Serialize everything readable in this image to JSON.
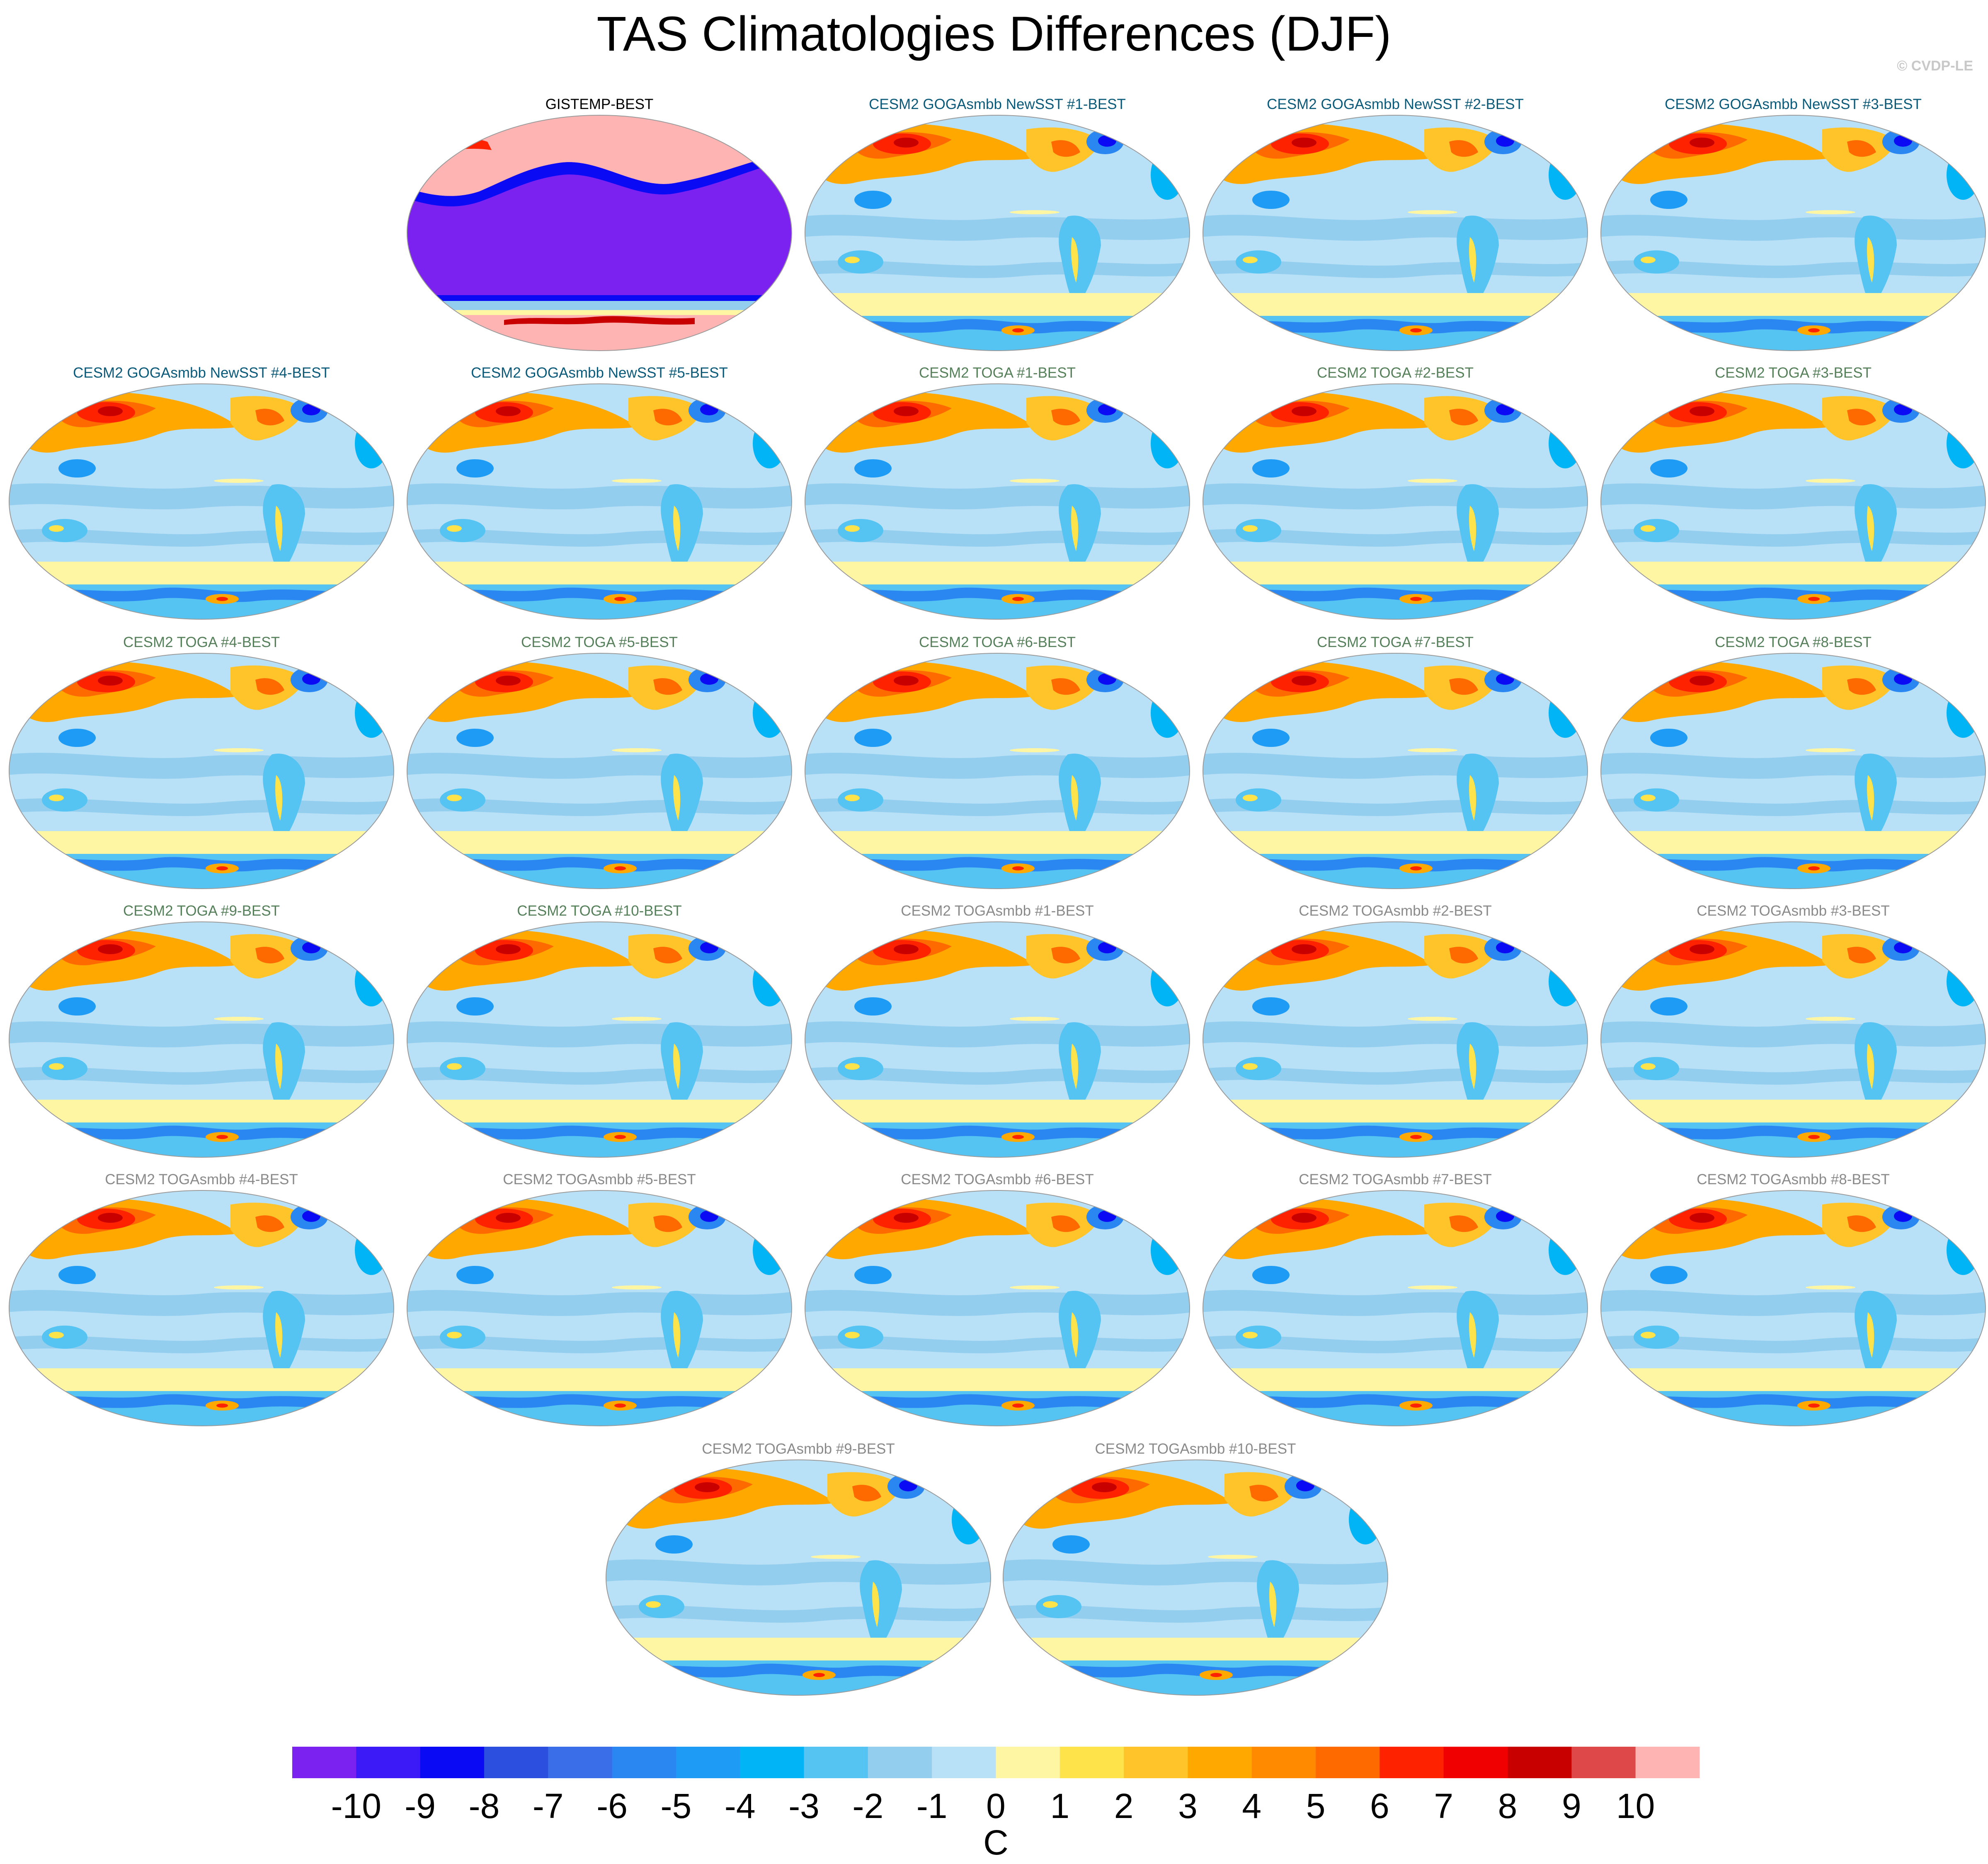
{
  "title": "TAS Climatologies Differences (DJF)",
  "copyright": "© CVDP-LE",
  "colors": {
    "title_obs": "#000000",
    "title_goga": "#0b5a7a",
    "title_toga": "#55805a",
    "title_togasmbb": "#8a8a8a"
  },
  "chart_data": {
    "type": "heatmap",
    "projection": "robinson (world maps, pacific-centred)",
    "variable": "TAS",
    "season": "DJF",
    "panels": [
      {
        "title": "GISTEMP-BEST",
        "group": "obs"
      },
      {
        "title": "CESM2 GOGAsmbb NewSST #1-BEST",
        "group": "goga"
      },
      {
        "title": "CESM2 GOGAsmbb NewSST #2-BEST",
        "group": "goga"
      },
      {
        "title": "CESM2 GOGAsmbb NewSST #3-BEST",
        "group": "goga"
      },
      {
        "title": "CESM2 GOGAsmbb NewSST #4-BEST",
        "group": "goga"
      },
      {
        "title": "CESM2 GOGAsmbb NewSST #5-BEST",
        "group": "goga"
      },
      {
        "title": "CESM2 TOGA #1-BEST",
        "group": "toga"
      },
      {
        "title": "CESM2 TOGA #2-BEST",
        "group": "toga"
      },
      {
        "title": "CESM2 TOGA #3-BEST",
        "group": "toga"
      },
      {
        "title": "CESM2 TOGA #4-BEST",
        "group": "toga"
      },
      {
        "title": "CESM2 TOGA #5-BEST",
        "group": "toga"
      },
      {
        "title": "CESM2 TOGA #6-BEST",
        "group": "toga"
      },
      {
        "title": "CESM2 TOGA #7-BEST",
        "group": "toga"
      },
      {
        "title": "CESM2 TOGA #8-BEST",
        "group": "toga"
      },
      {
        "title": "CESM2 TOGA #9-BEST",
        "group": "toga"
      },
      {
        "title": "CESM2 TOGA #10-BEST",
        "group": "toga"
      },
      {
        "title": "CESM2 TOGAsmbb #1-BEST",
        "group": "togasmbb"
      },
      {
        "title": "CESM2 TOGAsmbb #2-BEST",
        "group": "togasmbb"
      },
      {
        "title": "CESM2 TOGAsmbb #3-BEST",
        "group": "togasmbb"
      },
      {
        "title": "CESM2 TOGAsmbb #4-BEST",
        "group": "togasmbb"
      },
      {
        "title": "CESM2 TOGAsmbb #5-BEST",
        "group": "togasmbb"
      },
      {
        "title": "CESM2 TOGAsmbb #6-BEST",
        "group": "togasmbb"
      },
      {
        "title": "CESM2 TOGAsmbb #7-BEST",
        "group": "togasmbb"
      },
      {
        "title": "CESM2 TOGAsmbb #8-BEST",
        "group": "togasmbb"
      },
      {
        "title": "CESM2 TOGAsmbb #9-BEST",
        "group": "togasmbb"
      },
      {
        "title": "CESM2 TOGAsmbb #10-BEST",
        "group": "togasmbb"
      }
    ],
    "colorbar": {
      "label": "C",
      "ticks": [
        -10,
        -9,
        -8,
        -7,
        -6,
        -5,
        -4,
        -3,
        -2,
        -1,
        0,
        1,
        2,
        3,
        4,
        5,
        6,
        7,
        8,
        9,
        10
      ],
      "colors": [
        "#7c22f0",
        "#3c1af8",
        "#0a0af5",
        "#2c4fe0",
        "#3a6ee8",
        "#2a86f0",
        "#1e9cf5",
        "#00b4f5",
        "#56c4f2",
        "#94ceef",
        "#b8e0f6",
        "#fff6a4",
        "#ffe34a",
        "#ffc42a",
        "#ffa800",
        "#ff8a00",
        "#ff6a00",
        "#ff2200",
        "#f00000",
        "#c80000",
        "#de4848",
        "#ffb4b4"
      ]
    }
  }
}
